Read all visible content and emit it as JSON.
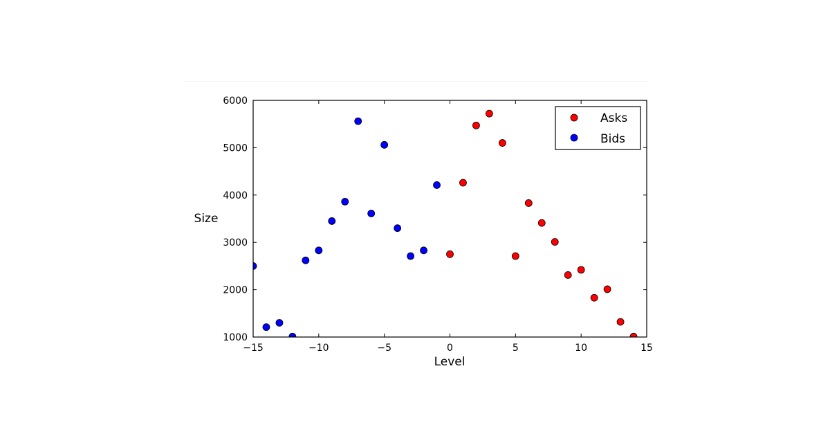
{
  "chart_data": {
    "type": "scatter",
    "title": "",
    "xlabel": "Level",
    "ylabel": "Size",
    "xlim": [
      -15,
      15
    ],
    "ylim": [
      1000,
      6000
    ],
    "xticks": [
      -15,
      -10,
      -5,
      0,
      5,
      10,
      15
    ],
    "xtick_labels": [
      "−15",
      "−10",
      "−5",
      "0",
      "5",
      "10",
      "15"
    ],
    "yticks": [
      1000,
      2000,
      3000,
      4000,
      5000,
      6000
    ],
    "ytick_labels": [
      "1000",
      "2000",
      "3000",
      "4000",
      "5000",
      "6000"
    ],
    "grid": false,
    "legend_position": "top-right",
    "series": [
      {
        "name": "Asks",
        "color": "#ff0000",
        "x": [
          0,
          1,
          2,
          3,
          4,
          5,
          6,
          7,
          8,
          9,
          10,
          11,
          12,
          13,
          14
        ],
        "y": [
          2750,
          4260,
          5470,
          5720,
          5100,
          2710,
          3830,
          3410,
          3010,
          2310,
          2420,
          1830,
          2010,
          1320,
          1010
        ]
      },
      {
        "name": "Bids",
        "color": "#0000ff",
        "x": [
          -15,
          -14,
          -13,
          -12,
          -11,
          -10,
          -9,
          -8,
          -7,
          -6,
          -5,
          -4,
          -3,
          -2,
          -1
        ],
        "y": [
          2500,
          1210,
          1300,
          1010,
          2620,
          2830,
          3450,
          3860,
          5560,
          3610,
          5060,
          3300,
          2710,
          2830,
          4210
        ]
      }
    ]
  }
}
